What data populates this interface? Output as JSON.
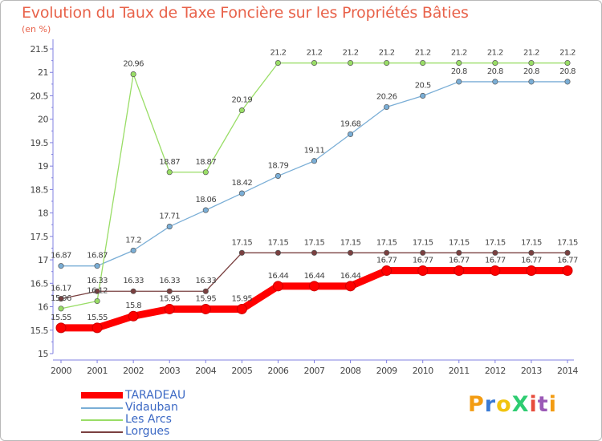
{
  "chart_data": {
    "type": "line",
    "title": "Evolution du Taux de Taxe Foncière sur les Propriétés Bâties",
    "subtitle": "(en %)",
    "xlabel": "",
    "ylabel": "",
    "x": [
      "2000",
      "2001",
      "2002",
      "2003",
      "2004",
      "2005",
      "2006",
      "2007",
      "2008",
      "2009",
      "2010",
      "2011",
      "2012",
      "2013",
      "2014"
    ],
    "ylim": [
      15,
      21.5
    ],
    "yticks": [
      "15",
      "15.5",
      "16",
      "16.5",
      "17",
      "17.5",
      "18",
      "18.5",
      "19",
      "19.5",
      "20",
      "20.5",
      "21",
      "21.5"
    ],
    "grid": false,
    "legend_position": "bottom-left",
    "series": [
      {
        "name": "TARADEAU",
        "color": "#ff0000",
        "values": [
          15.55,
          15.55,
          15.8,
          15.95,
          15.95,
          15.95,
          16.44,
          16.44,
          16.44,
          16.77,
          16.77,
          16.77,
          16.77,
          16.77,
          16.77
        ],
        "labels": [
          "15.55",
          "15.55",
          "15.8",
          "15.95",
          "15.95",
          "15.95",
          "16.44",
          "16.44",
          "16.44",
          "16.77",
          "16.77",
          "16.77",
          "16.77",
          "16.77",
          "16.77"
        ]
      },
      {
        "name": "Vidauban",
        "color": "#7aaed6",
        "values": [
          16.87,
          16.87,
          17.2,
          17.71,
          18.06,
          18.42,
          18.79,
          19.11,
          19.68,
          20.26,
          20.5,
          20.8,
          20.8,
          20.8,
          20.8
        ],
        "labels": [
          "16.87",
          "16.87",
          "17.2",
          "17.71",
          "18.06",
          "18.42",
          "18.79",
          "19.11",
          "19.68",
          "20.26",
          "20.5",
          "20.8",
          "20.8",
          "20.8",
          "20.8"
        ]
      },
      {
        "name": "Les Arcs",
        "color": "#99dd66",
        "values": [
          15.96,
          16.12,
          20.96,
          18.87,
          18.87,
          20.19,
          21.2,
          21.2,
          21.2,
          21.2,
          21.2,
          21.2,
          21.2,
          21.2,
          21.2
        ],
        "labels": [
          "15.96",
          "16.12",
          "20.96",
          "18.87",
          "18.87",
          "20.19",
          "21.2",
          "21.2",
          "21.2",
          "21.2",
          "21.2",
          "21.2",
          "21.2",
          "21.2",
          "21.2"
        ]
      },
      {
        "name": "Lorgues",
        "color": "#7a4040",
        "values": [
          16.17,
          16.33,
          16.33,
          16.33,
          16.33,
          17.15,
          17.15,
          17.15,
          17.15,
          17.15,
          17.15,
          17.15,
          17.15,
          17.15,
          17.15
        ],
        "labels": [
          "16.17",
          "16.33",
          "16.33",
          "16.33",
          "16.33",
          "17.15",
          "17.15",
          "17.15",
          "17.15",
          "17.15",
          "17.15",
          "17.15",
          "17.15",
          "17.15",
          "17.15"
        ]
      }
    ]
  },
  "logo": {
    "text": "ProXiti",
    "letters": [
      "P",
      "r",
      "o",
      "X",
      "i",
      "t",
      "i"
    ],
    "colors": [
      "#f39c12",
      "#3a7bd5",
      "#f1c40f",
      "#2ecc71",
      "#e74c3c",
      "#9b59b6",
      "#f39c12"
    ]
  }
}
